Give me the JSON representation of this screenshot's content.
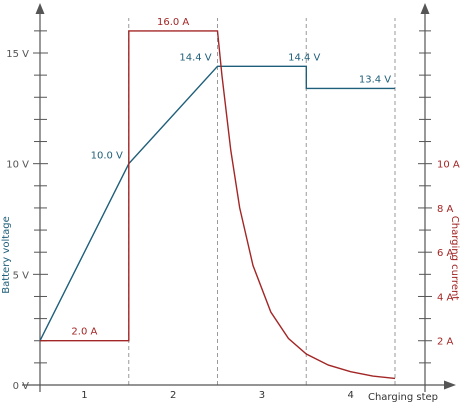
{
  "chart_data": {
    "type": "line",
    "title": "",
    "x": [
      0,
      1,
      2,
      3,
      4
    ],
    "xlabel": "Charging step",
    "x_tick_labels": [
      "1",
      "2",
      "3",
      "4"
    ],
    "ylabel_left": "Battery voltage",
    "ylabel_right": "Charging current",
    "ylim_left": [
      0,
      17
    ],
    "ylim_right": [
      0,
      17
    ],
    "y_left_ticks": [
      {
        "value": 0,
        "label": "0 V"
      },
      {
        "value": 5,
        "label": "5 V"
      },
      {
        "value": 10,
        "label": "10 V"
      },
      {
        "value": 15,
        "label": "15 V"
      }
    ],
    "y_right_ticks": [
      {
        "value": 2,
        "label": "2 A"
      },
      {
        "value": 4,
        "label": "4 A"
      },
      {
        "value": 6,
        "label": "6 A"
      },
      {
        "value": 8,
        "label": "8 A"
      },
      {
        "value": 10,
        "label": "10 A"
      }
    ],
    "grid": false,
    "step_boundaries": [
      1,
      2,
      3,
      4
    ],
    "series": [
      {
        "color": "#1f5f7a",
        "axis": "left",
        "unit": "V",
        "points": [
          [
            0,
            2.0
          ],
          [
            1,
            10.0
          ],
          [
            2,
            14.4
          ],
          [
            3,
            14.4
          ],
          [
            3,
            13.4
          ],
          [
            4,
            13.4
          ]
        ]
      },
      {
        "color": "#a32626",
        "axis": "right",
        "unit": "A",
        "points": [
          [
            0,
            2.0
          ],
          [
            1,
            2.0
          ],
          [
            1,
            16.0
          ],
          [
            2,
            16.0
          ],
          [
            2.05,
            14.0
          ],
          [
            2.15,
            10.6
          ],
          [
            2.25,
            8.0
          ],
          [
            2.4,
            5.4
          ],
          [
            2.6,
            3.3
          ],
          [
            2.8,
            2.1
          ],
          [
            3.0,
            1.4
          ],
          [
            3.25,
            0.9
          ],
          [
            3.5,
            0.6
          ],
          [
            3.75,
            0.4
          ],
          [
            4,
            0.3
          ]
        ]
      }
    ],
    "annotations": [
      {
        "text": "10.0 V",
        "x": 1,
        "y": 10.0,
        "series": 0
      },
      {
        "text": "14.4 V",
        "x": 2,
        "y": 14.4,
        "series": 0
      },
      {
        "text": "14.4 V",
        "x": 3,
        "y": 14.4,
        "series": 0
      },
      {
        "text": "13.4 V",
        "x": 4,
        "y": 13.4,
        "series": 0
      },
      {
        "text": "2.0 A",
        "x": 0.5,
        "y": 2.0,
        "series": 1
      },
      {
        "text": "16.0 A",
        "x": 1.5,
        "y": 16.0,
        "series": 1
      }
    ]
  }
}
